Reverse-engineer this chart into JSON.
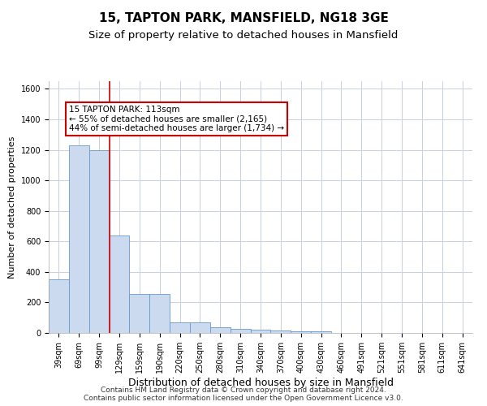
{
  "title": "15, TAPTON PARK, MANSFIELD, NG18 3GE",
  "subtitle": "Size of property relative to detached houses in Mansfield",
  "xlabel": "Distribution of detached houses by size in Mansfield",
  "ylabel": "Number of detached properties",
  "categories": [
    "39sqm",
    "69sqm",
    "99sqm",
    "129sqm",
    "159sqm",
    "190sqm",
    "220sqm",
    "250sqm",
    "280sqm",
    "310sqm",
    "340sqm",
    "370sqm",
    "400sqm",
    "430sqm",
    "460sqm",
    "491sqm",
    "521sqm",
    "551sqm",
    "581sqm",
    "611sqm",
    "641sqm"
  ],
  "values": [
    350,
    1230,
    1200,
    640,
    255,
    255,
    68,
    68,
    35,
    28,
    20,
    15,
    12,
    10,
    0,
    0,
    0,
    0,
    0,
    0,
    0
  ],
  "bar_color": "#ccdaf0",
  "bar_edge_color": "#6699cc",
  "red_line_x": 2.5,
  "annotation_text": "15 TAPTON PARK: 113sqm\n← 55% of detached houses are smaller (2,165)\n44% of semi-detached houses are larger (1,734) →",
  "annotation_box_color": "#ffffff",
  "annotation_box_edge_color": "#cc0000",
  "red_line_color": "#cc0000",
  "grid_color": "#c8d0e0",
  "background_color": "#ffffff",
  "footer_text": "Contains HM Land Registry data © Crown copyright and database right 2024.\nContains public sector information licensed under the Open Government Licence v3.0.",
  "ylim": [
    0,
    1650
  ],
  "yticks": [
    0,
    200,
    400,
    600,
    800,
    1000,
    1200,
    1400,
    1600
  ],
  "title_fontsize": 11,
  "subtitle_fontsize": 9.5,
  "xlabel_fontsize": 9,
  "ylabel_fontsize": 8,
  "tick_fontsize": 7,
  "annotation_fontsize": 7.5,
  "footer_fontsize": 6.5
}
